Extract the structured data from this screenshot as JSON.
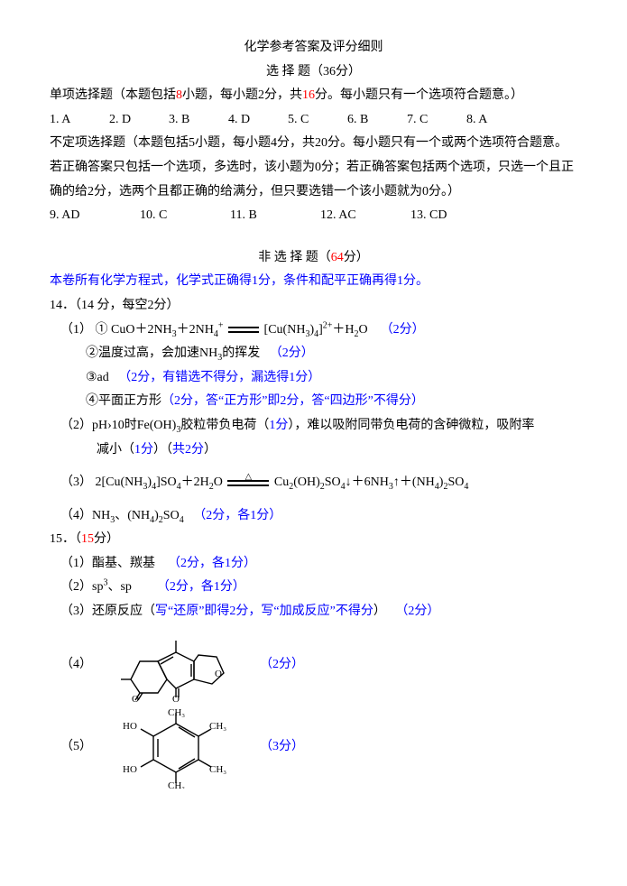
{
  "title": "化学参考答案及评分细则",
  "section1": {
    "heading": "选 择 题（36分）",
    "mcq_intro_pre": "单项选择题（本题包括",
    "mcq_count": "8",
    "mcq_intro_mid": "小题，每小题2分，共",
    "mcq_total": "16",
    "mcq_intro_post": "分。每小题只有一个选项符合题意。）",
    "mcq_answers": [
      {
        "n": "1.",
        "a": "A"
      },
      {
        "n": "2.",
        "a": "D"
      },
      {
        "n": "3.",
        "a": "B"
      },
      {
        "n": "4.",
        "a": "D"
      },
      {
        "n": "5.",
        "a": "C"
      },
      {
        "n": "6.",
        "a": "B"
      },
      {
        "n": "7.",
        "a": "C"
      },
      {
        "n": "8.",
        "a": "A"
      }
    ],
    "multi_intro": "不定项选择题（本题包括5小题，每小题4分，共20分。每小题只有一个或两个选项符合题意。若正确答案只包括一个选项，多选时，该小题为0分；若正确答案包括两个选项，只选一个且正确的给2分，选两个且都正确的给满分，但只要选错一个该小题就为0分。）",
    "multi_answers": [
      {
        "n": "9.",
        "a": "AD"
      },
      {
        "n": "10.",
        "a": "C"
      },
      {
        "n": "11.",
        "a": "B"
      },
      {
        "n": "12.",
        "a": "AC"
      },
      {
        "n": "13.",
        "a": "CD"
      }
    ]
  },
  "section2": {
    "heading_pre": "非 选 择 题（",
    "heading_pts": "64",
    "heading_post": "分）",
    "note": "本卷所有化学方程式，化学式正确得1分，条件和配平正确再得1分。",
    "q14": {
      "title": "14．（14 分，每空2分）",
      "p1_num": "（1）",
      "p1_1_label": "①",
      "p1_1_eq_left": "CuO＋2NH₃＋2NH₄⁺",
      "p1_1_eq_right": "[Cu(NH₃)₄]²⁺＋H₂O",
      "p1_1_pts": "（2分）",
      "p1_2": "②温度过高，会加速NH₃的挥发",
      "p1_2_pts": "（2分）",
      "p1_3": "③ad",
      "p1_3_pts": "（2分，有错选不得分，漏选得1分）",
      "p1_4": "④平面正方形",
      "p1_4_pts": "（2分，答“正方形”即2分，答“四边形”不得分）",
      "p2_a": "（2）pH›10时Fe(OH)₃胶粒带负电荷（",
      "p2_a_pts": "1分",
      "p2_b": "），难以吸附同带负电荷的含砷微粒，吸附率减小（",
      "p2_b_pts": "1分",
      "p2_c": "）（",
      "p2_c_all": "共2分",
      "p2_d": "）",
      "p3_label": "（3）",
      "p3_eq_left": "2[Cu(NH₃)₄]SO₄＋2H₂O",
      "p3_eq_right": "Cu₂(OH)₂SO₄↓＋6NH₃↑＋(NH₄)₂SO₄",
      "p4": "（4）NH₃、(NH₄)₂SO₄",
      "p4_pts": "（2分，各1分）"
    },
    "q15": {
      "title_pre": "15．（",
      "title_pts": "15",
      "title_post": "分）",
      "p1": "（1）酯基、羰基",
      "p1_pts": "（2分，各1分）",
      "p2": "（2）sp³、sp",
      "p2_pts": "（2分，各1分）",
      "p3": "（3）还原反应（",
      "p3_mid": "写“还原”即得2分，写“加成反应”不得分",
      "p3_close": "）",
      "p3_pts": "（2分）",
      "p4_label": "（4）",
      "p4_pts": "（2分）",
      "p5_label": "（5）",
      "p5_pts": "（3分）",
      "mol5": {
        "CH3": "CH₃",
        "HO": "HO",
        "OH": "OH"
      }
    }
  },
  "style": {
    "red": "#ff0000",
    "blue": "#0000ff",
    "answer_col_width": 66,
    "multi_col_width": 100
  }
}
